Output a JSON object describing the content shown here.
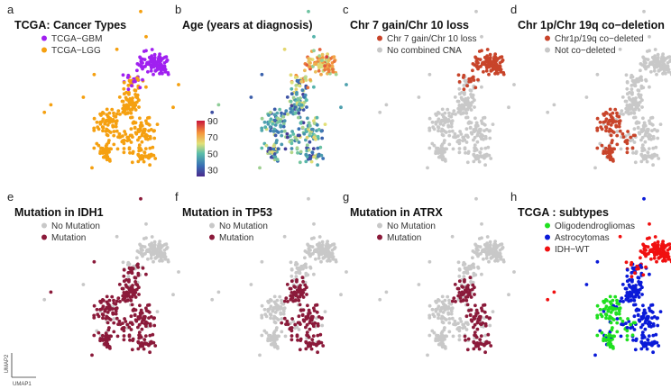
{
  "chart_data": [
    {
      "type": "scatter",
      "letter": "a",
      "title": "TCGA: Cancer Types",
      "legend": [
        {
          "label": "TCGA−GBM",
          "color": "#a020f0"
        },
        {
          "label": "TCGA−LGG",
          "color": "#f5a010"
        }
      ],
      "coloring": "cancer_type"
    },
    {
      "type": "scatter",
      "letter": "b",
      "title": "Age (years at diagnosis)",
      "coloring": "age",
      "colorbar": {
        "min": 22,
        "max": 90,
        "ticks": [
          90,
          70,
          50,
          30
        ]
      }
    },
    {
      "type": "scatter",
      "letter": "c",
      "title": "Chr 7 gain/Chr 10 loss",
      "legend": [
        {
          "label": "Chr 7 gain/Chr 10 loss",
          "color": "#c8442a"
        },
        {
          "label": "No combined CNA",
          "color": "#c8c8c8"
        }
      ],
      "coloring": "chr7_10"
    },
    {
      "type": "scatter",
      "letter": "d",
      "title": "Chr 1p/Chr 19q co−deletion",
      "legend": [
        {
          "label": "Chr1p/19q co−deleted",
          "color": "#c8442a"
        },
        {
          "label": "Not co−deleted",
          "color": "#c8c8c8"
        }
      ],
      "coloring": "codel"
    },
    {
      "type": "scatter",
      "letter": "e",
      "title": "Mutation in IDH1",
      "legend": [
        {
          "label": "No Mutation",
          "color": "#c8c8c8"
        },
        {
          "label": "Mutation",
          "color": "#8b1a3a"
        }
      ],
      "coloring": "idh1"
    },
    {
      "type": "scatter",
      "letter": "f",
      "title": "Mutation in TP53",
      "legend": [
        {
          "label": "No Mutation",
          "color": "#c8c8c8"
        },
        {
          "label": "Mutation",
          "color": "#8b1a3a"
        }
      ],
      "coloring": "tp53"
    },
    {
      "type": "scatter",
      "letter": "g",
      "title": "Mutation in ATRX",
      "legend": [
        {
          "label": "No Mutation",
          "color": "#c8c8c8"
        },
        {
          "label": "Mutation",
          "color": "#8b1a3a"
        }
      ],
      "coloring": "atrx"
    },
    {
      "type": "scatter",
      "letter": "h",
      "title": "TCGA : subtypes",
      "legend": [
        {
          "label": "Oligodendrogliomas",
          "color": "#1fe01f"
        },
        {
          "label": "Astrocytomas",
          "color": "#0a1ad8"
        },
        {
          "label": "IDH−WT",
          "color": "#f01010"
        }
      ],
      "coloring": "subtype"
    }
  ],
  "axes": {
    "xlabel": "UMAP1",
    "ylabel": "UMAP2"
  }
}
